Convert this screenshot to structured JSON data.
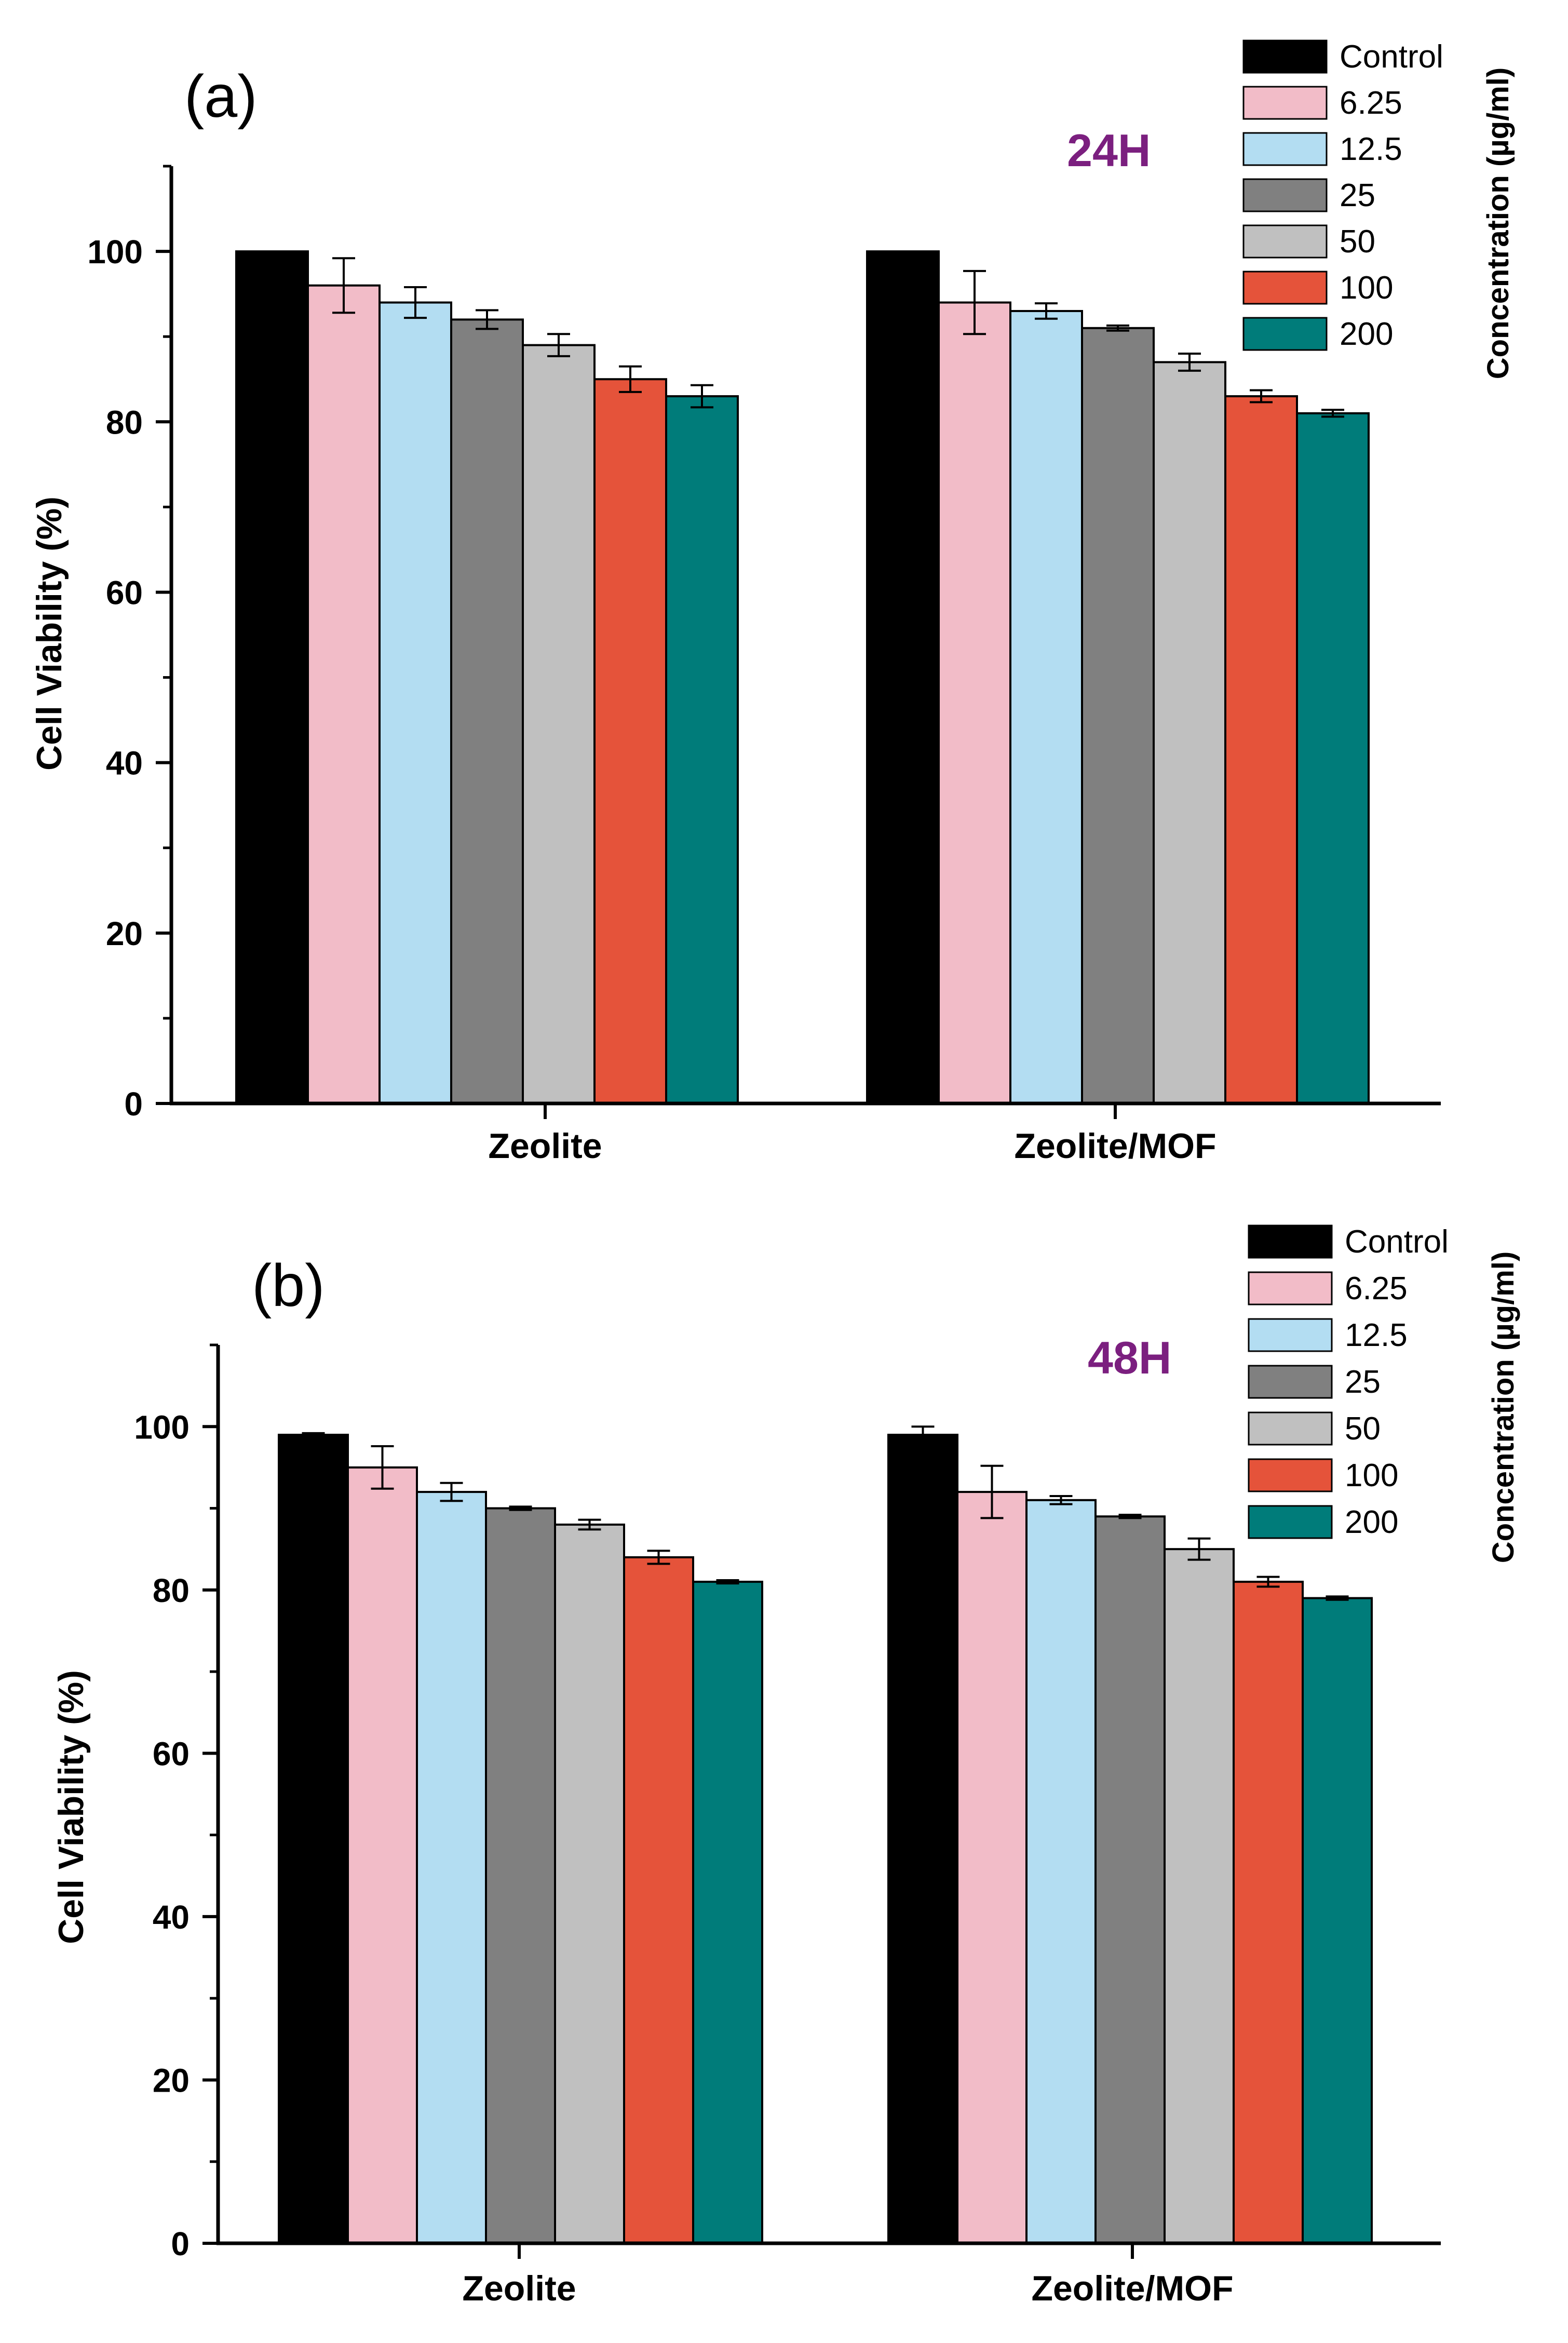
{
  "chart_data": [
    {
      "type": "bar",
      "panel_label": "(a)",
      "time_label": "24H",
      "ylabel": "Cell Viability (%)",
      "xlabel": "",
      "ylim": [
        0,
        110
      ],
      "yticks": [
        "0",
        "20",
        "40",
        "60",
        "80",
        "100"
      ],
      "categories": [
        "Zeolite",
        "Zeolite/MOF"
      ],
      "legend_title": "Concentration (µg/ml)",
      "legend_position": "top-right",
      "series": [
        {
          "name": "Control",
          "values": [
            100,
            100
          ],
          "errors": [
            0,
            0
          ],
          "color": "#000000"
        },
        {
          "name": "6.25",
          "values": [
            96,
            94
          ],
          "errors": [
            3.2,
            3.7
          ],
          "color": "#f2bcc8"
        },
        {
          "name": "12.5",
          "values": [
            94,
            93
          ],
          "errors": [
            1.8,
            0.9
          ],
          "color": "#b3ddf2"
        },
        {
          "name": "25",
          "values": [
            92,
            91
          ],
          "errors": [
            1.1,
            0.3
          ],
          "color": "#808080"
        },
        {
          "name": "50",
          "values": [
            89,
            87
          ],
          "errors": [
            1.3,
            1.0
          ],
          "color": "#c0c0c0"
        },
        {
          "name": "100",
          "values": [
            85,
            83
          ],
          "errors": [
            1.5,
            0.7
          ],
          "color": "#e5533a"
        },
        {
          "name": "200",
          "values": [
            83,
            81
          ],
          "errors": [
            1.3,
            0.4
          ],
          "color": "#007c7a"
        }
      ]
    },
    {
      "type": "bar",
      "panel_label": "(b)",
      "time_label": "48H",
      "ylabel": "Cell Viability (%)",
      "xlabel": "",
      "ylim": [
        0,
        110
      ],
      "yticks": [
        "0",
        "20",
        "40",
        "60",
        "80",
        "100"
      ],
      "categories": [
        "Zeolite",
        "Zeolite/MOF"
      ],
      "legend_title": "Concentration (µg/ml)",
      "legend_position": "top-right",
      "series": [
        {
          "name": "Control",
          "values": [
            99,
            99
          ],
          "errors": [
            0.2,
            1.0
          ],
          "color": "#000000"
        },
        {
          "name": "6.25",
          "values": [
            95,
            92
          ],
          "errors": [
            2.6,
            3.2
          ],
          "color": "#f2bcc8"
        },
        {
          "name": "12.5",
          "values": [
            92,
            91
          ],
          "errors": [
            1.1,
            0.5
          ],
          "color": "#b3ddf2"
        },
        {
          "name": "25",
          "values": [
            90,
            89
          ],
          "errors": [
            0.2,
            0.2
          ],
          "color": "#808080"
        },
        {
          "name": "50",
          "values": [
            88,
            85
          ],
          "errors": [
            0.6,
            1.3
          ],
          "color": "#c0c0c0"
        },
        {
          "name": "100",
          "values": [
            84,
            81
          ],
          "errors": [
            0.8,
            0.6
          ],
          "color": "#e5533a"
        },
        {
          "name": "200",
          "values": [
            81,
            79
          ],
          "errors": [
            0.2,
            0.2
          ],
          "color": "#007c7a"
        }
      ]
    }
  ],
  "colors": {
    "time_label": "#7b1f7f",
    "axis": "#000000"
  }
}
